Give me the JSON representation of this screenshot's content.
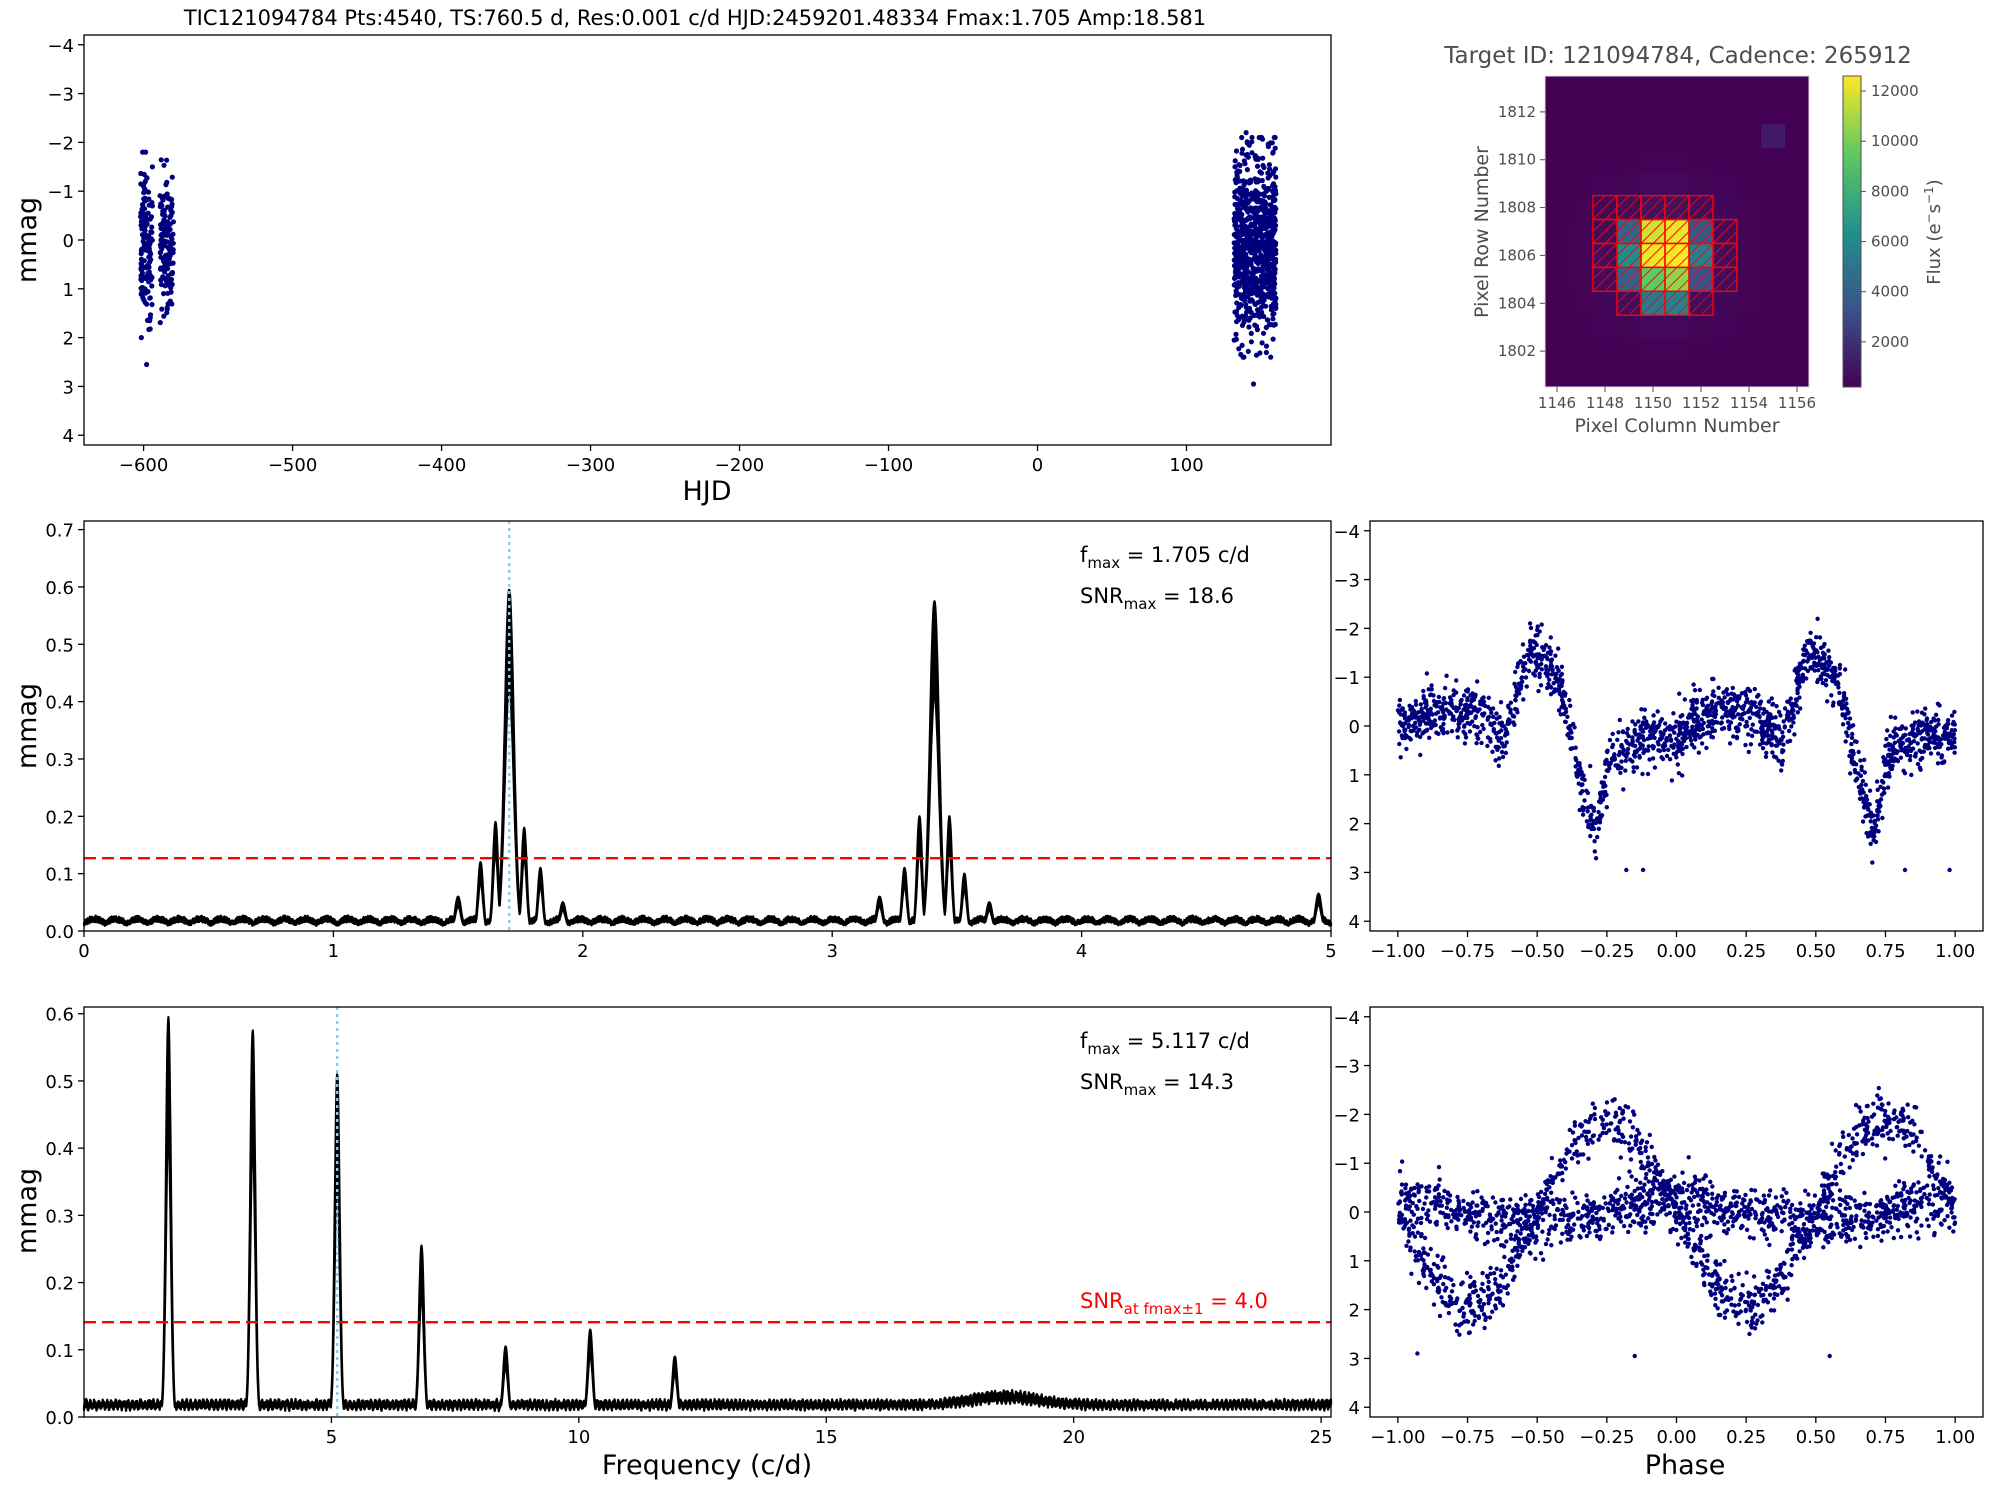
{
  "figure_title": "TIC121094784  Pts:4540,  TS:760.5 d,  Res:0.001 c/d HJD:2459201.48334 Fmax:1.705 Amp:18.581",
  "colors": {
    "points": "#00007f",
    "line": "#000000",
    "threshold": "#ff0000",
    "peak_marker": "#87ceeb",
    "aperture": "#ff0000"
  },
  "chart_data": [
    {
      "id": "lightcurve",
      "type": "scatter",
      "xlabel": "HJD",
      "ylabel": "mmag",
      "xlim": [
        -640,
        197
      ],
      "ylim": [
        4.2,
        -4.2
      ],
      "y_inverted": true,
      "xticks": [
        -600,
        -500,
        -400,
        -300,
        -200,
        -100,
        0,
        100
      ],
      "xtick_labels": [
        "−600",
        "−500",
        "−400",
        "−300",
        "−200",
        "−100",
        "0",
        "100"
      ],
      "yticks": [
        -4,
        -3,
        -2,
        -1,
        0,
        1,
        2,
        3,
        4
      ],
      "ytick_labels": [
        "−4",
        "−3",
        "−2",
        "−1",
        "0",
        "1",
        "2",
        "3",
        "4"
      ],
      "clusters": [
        {
          "x_range": [
            -602,
            -594
          ],
          "y_range": [
            -1.8,
            2.0
          ],
          "n": 150
        },
        {
          "x_range": [
            -589,
            -580
          ],
          "y_range": [
            -1.7,
            2.0
          ],
          "n": 150
        },
        {
          "x_range": [
            132,
            160
          ],
          "y_range": [
            -2.1,
            2.4
          ],
          "n": 800
        }
      ],
      "outliers": [
        {
          "x": -598,
          "y": 2.55
        },
        {
          "x": 145,
          "y": 2.95
        },
        {
          "x": 140,
          "y": -2.2
        }
      ]
    },
    {
      "id": "target_pixel_file",
      "type": "heatmap",
      "title": "Target ID: 121094784, Cadence: 265912",
      "xlabel": "Pixel Column Number",
      "ylabel": "Pixel Row Number",
      "colorbar_label_text": "Flux",
      "colorbar_label_unit_base": "(e",
      "colorbar_label_unit_sup": "−",
      "colorbar_label_unit_mid": "s",
      "colorbar_label_unit_sup2": "−1",
      "colorbar_label_unit_end": ")",
      "colorbar_ticks": [
        2000,
        4000,
        6000,
        8000,
        10000,
        12000
      ],
      "colorbar_tick_labels": [
        "2000",
        "4000",
        "6000",
        "8000",
        "10000",
        "12000"
      ],
      "colorbar_range": [
        200,
        12600
      ],
      "col_range": [
        1145.5,
        1156.5
      ],
      "row_range": [
        1800.5,
        1813.5
      ],
      "col_ticks": [
        1146,
        1148,
        1150,
        1152,
        1154,
        1156
      ],
      "row_ticks": [
        1802,
        1804,
        1806,
        1808,
        1810,
        1812
      ],
      "bright_pixels": [
        {
          "col": 1150,
          "row": 1807,
          "flux": 11800
        },
        {
          "col": 1151,
          "row": 1807,
          "flux": 12300
        },
        {
          "col": 1150,
          "row": 1806,
          "flux": 12400
        },
        {
          "col": 1151,
          "row": 1806,
          "flux": 12600
        },
        {
          "col": 1149,
          "row": 1806,
          "flux": 6200
        },
        {
          "col": 1152,
          "row": 1806,
          "flux": 5400
        },
        {
          "col": 1150,
          "row": 1805,
          "flux": 9500
        },
        {
          "col": 1151,
          "row": 1805,
          "flux": 10500
        },
        {
          "col": 1150,
          "row": 1804,
          "flux": 5200
        },
        {
          "col": 1151,
          "row": 1804,
          "flux": 5600
        },
        {
          "col": 1149,
          "row": 1807,
          "flux": 4200
        },
        {
          "col": 1152,
          "row": 1807,
          "flux": 3600
        },
        {
          "col": 1149,
          "row": 1805,
          "flux": 4000
        },
        {
          "col": 1152,
          "row": 1805,
          "flux": 3300
        },
        {
          "col": 1155,
          "row": 1811,
          "flux": 1100
        }
      ],
      "aperture_rows": [
        {
          "row": 1808,
          "cols": [
            1148,
            1149,
            1150,
            1151,
            1152
          ]
        },
        {
          "row": 1807,
          "cols": [
            1148,
            1149,
            1150,
            1151,
            1152,
            1153
          ]
        },
        {
          "row": 1806,
          "cols": [
            1148,
            1149,
            1150,
            1151,
            1152,
            1153
          ]
        },
        {
          "row": 1805,
          "cols": [
            1148,
            1149,
            1150,
            1151,
            1152,
            1153
          ]
        },
        {
          "row": 1804,
          "cols": [
            1149,
            1150,
            1151,
            1152
          ]
        }
      ]
    },
    {
      "id": "periodogram_1",
      "type": "line",
      "ylabel": "mmag",
      "xlim": [
        0,
        5
      ],
      "ylim": [
        0,
        0.715
      ],
      "xticks": [
        0,
        1,
        2,
        3,
        4,
        5
      ],
      "xtick_labels": [
        "0",
        "1",
        "2",
        "3",
        "4",
        "5"
      ],
      "yticks": [
        0,
        0.1,
        0.2,
        0.3,
        0.4,
        0.5,
        0.6,
        0.7
      ],
      "ytick_labels": [
        "0.0",
        "0.1",
        "0.2",
        "0.3",
        "0.4",
        "0.5",
        "0.6",
        "0.7"
      ],
      "threshold": 0.127,
      "peak_marker_x": 1.705,
      "peaks": [
        {
          "x": 1.705,
          "y": 0.595,
          "w": 0.018
        },
        {
          "x": 3.41,
          "y": 0.575,
          "w": 0.018
        },
        {
          "x": 1.65,
          "y": 0.19,
          "w": 0.01
        },
        {
          "x": 1.765,
          "y": 0.18,
          "w": 0.01
        },
        {
          "x": 1.59,
          "y": 0.12,
          "w": 0.01
        },
        {
          "x": 1.83,
          "y": 0.11,
          "w": 0.01
        },
        {
          "x": 3.35,
          "y": 0.2,
          "w": 0.01
        },
        {
          "x": 3.47,
          "y": 0.2,
          "w": 0.01
        },
        {
          "x": 3.29,
          "y": 0.11,
          "w": 0.01
        },
        {
          "x": 3.53,
          "y": 0.1,
          "w": 0.01
        },
        {
          "x": 1.5,
          "y": 0.06,
          "w": 0.012
        },
        {
          "x": 1.92,
          "y": 0.05,
          "w": 0.012
        },
        {
          "x": 3.19,
          "y": 0.06,
          "w": 0.012
        },
        {
          "x": 3.63,
          "y": 0.05,
          "w": 0.012
        },
        {
          "x": 4.95,
          "y": 0.065,
          "w": 0.012
        }
      ],
      "annotations": [
        {
          "main": "f",
          "sub": "max",
          "rest": " = 1.705 c/d"
        },
        {
          "main": "SNR",
          "sub": "max",
          "rest": " = 18.6"
        }
      ]
    },
    {
      "id": "phased_1",
      "type": "scatter",
      "xlim": [
        -1.1,
        1.1
      ],
      "ylim": [
        4.2,
        -4.2
      ],
      "y_inverted": true,
      "xticks": [
        -1,
        -0.75,
        -0.5,
        -0.25,
        0,
        0.25,
        0.5,
        0.75,
        1
      ],
      "xtick_labels": [
        "−1.00",
        "−0.75",
        "−0.50",
        "−0.25",
        "0.00",
        "0.25",
        "0.50",
        "0.75",
        "1.00"
      ],
      "yticks": [
        -4,
        -3,
        -2,
        -1,
        0,
        1,
        2,
        3,
        4
      ],
      "ytick_labels": [
        "−4",
        "−3",
        "−2",
        "−1",
        "0",
        "1",
        "2",
        "3",
        "4"
      ],
      "curve": {
        "phase": [
          -1.0,
          -0.85,
          -0.72,
          -0.62,
          -0.52,
          -0.42,
          -0.34,
          -0.29,
          -0.24,
          -0.15,
          0.0,
          0.15,
          0.28,
          0.38,
          0.48,
          0.58,
          0.66,
          0.71,
          0.76,
          0.85,
          1.0
        ],
        "mag": [
          0.0,
          -0.3,
          -0.3,
          0.3,
          -1.55,
          -0.9,
          1.2,
          2.2,
          0.6,
          0.3,
          0.2,
          -0.3,
          -0.3,
          0.3,
          -1.6,
          -0.9,
          1.2,
          2.15,
          0.6,
          0.3,
          0.1
        ]
      },
      "n_points": 1800,
      "scatter_sigma": 0.28,
      "outliers": [
        {
          "x": -0.18,
          "y": 2.95
        },
        {
          "x": -0.12,
          "y": 2.95
        },
        {
          "x": 0.82,
          "y": 2.95
        },
        {
          "x": 0.98,
          "y": 2.95
        }
      ]
    },
    {
      "id": "periodogram_2",
      "type": "line",
      "xlabel": "Frequency (c/d)",
      "ylabel": "mmag",
      "xlim": [
        0,
        25.2
      ],
      "ylim": [
        0,
        0.61
      ],
      "xticks": [
        5,
        10,
        15,
        20,
        25
      ],
      "xtick_labels": [
        "5",
        "10",
        "15",
        "20",
        "25"
      ],
      "yticks": [
        0,
        0.1,
        0.2,
        0.3,
        0.4,
        0.5,
        0.6
      ],
      "ytick_labels": [
        "0.0",
        "0.1",
        "0.2",
        "0.3",
        "0.4",
        "0.5",
        "0.6"
      ],
      "threshold": 0.141,
      "peak_marker_x": 5.117,
      "peaks": [
        {
          "x": 1.705,
          "y": 0.595,
          "w": 0.05
        },
        {
          "x": 3.41,
          "y": 0.575,
          "w": 0.05
        },
        {
          "x": 5.117,
          "y": 0.51,
          "w": 0.05
        },
        {
          "x": 6.82,
          "y": 0.255,
          "w": 0.05
        },
        {
          "x": 8.52,
          "y": 0.105,
          "w": 0.05
        },
        {
          "x": 10.23,
          "y": 0.13,
          "w": 0.05
        },
        {
          "x": 11.94,
          "y": 0.09,
          "w": 0.05
        }
      ],
      "annotations": [
        {
          "main": "f",
          "sub": "max",
          "rest": " = 5.117 c/d"
        },
        {
          "main": "SNR",
          "sub": "max",
          "rest": " = 14.3"
        }
      ],
      "threshold_label": {
        "main": "SNR",
        "sub": "at fmax±1",
        "rest": " = 4.0"
      }
    },
    {
      "id": "phased_2",
      "type": "scatter",
      "xlabel": "Phase",
      "xlim": [
        -1.1,
        1.1
      ],
      "ylim": [
        4.2,
        -4.2
      ],
      "y_inverted": true,
      "xticks": [
        -1,
        -0.75,
        -0.5,
        -0.25,
        0,
        0.25,
        0.5,
        0.75,
        1
      ],
      "xtick_labels": [
        "−1.00",
        "−0.75",
        "−0.50",
        "−0.25",
        "0.00",
        "0.25",
        "0.50",
        "0.75",
        "1.00"
      ],
      "yticks": [
        -4,
        -3,
        -2,
        -1,
        0,
        1,
        2,
        3,
        4
      ],
      "ytick_labels": [
        "−4",
        "−3",
        "−2",
        "−1",
        "0",
        "1",
        "2",
        "3",
        "4"
      ],
      "branches": [
        {
          "amp": 0.0,
          "phase": 0.0,
          "n": 600
        },
        {
          "amp": 1.7,
          "phase": 0.25,
          "n": 500
        },
        {
          "amp": -2.1,
          "phase": 0.25,
          "n": 500
        },
        {
          "amp": 0.45,
          "phase": 0.0,
          "n": 300
        },
        {
          "amp": -0.5,
          "phase": 0.0,
          "n": 300
        }
      ],
      "scatter_sigma": 0.22,
      "outliers": [
        {
          "x": -0.15,
          "y": 2.95
        },
        {
          "x": 0.55,
          "y": 2.95
        },
        {
          "x": -0.93,
          "y": 2.9
        }
      ]
    }
  ]
}
